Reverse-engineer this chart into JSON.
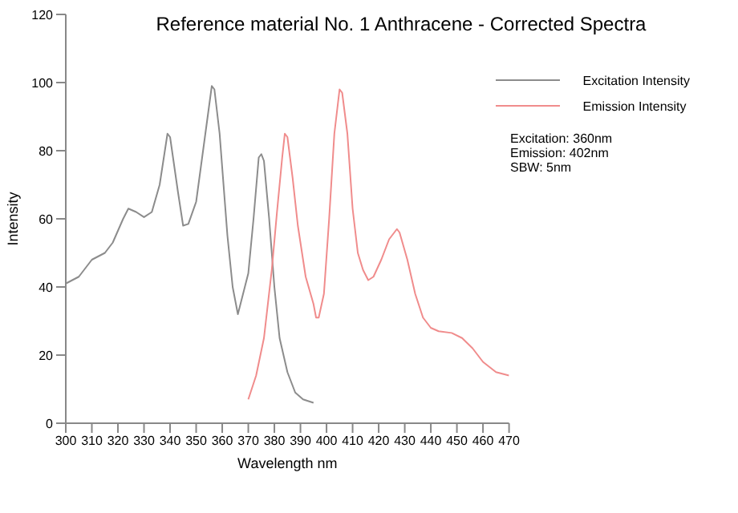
{
  "chart_data": {
    "type": "line",
    "title": "Reference material No. 1  Anthracene - Corrected Spectra",
    "xlabel": "Wavelength nm",
    "ylabel": "Intensity",
    "xlim": [
      300,
      470
    ],
    "xticks": [
      300,
      310,
      320,
      330,
      340,
      350,
      360,
      370,
      380,
      390,
      400,
      410,
      420,
      430,
      440,
      450,
      460,
      470
    ],
    "ylim": [
      0,
      120
    ],
    "yticks": [
      0,
      20,
      40,
      60,
      80,
      100,
      120
    ],
    "grid": false,
    "legend": "top right",
    "marker": "none",
    "line_style": "solid",
    "annotations": [
      "Excitation: 360nm",
      "Emission: 402nm",
      "SBW: 5nm"
    ],
    "series": [
      {
        "name": "Excitation Intensity",
        "color": "#8c8c8c",
        "x": [
          300,
          305,
          310,
          315,
          318,
          322,
          324,
          327,
          330,
          333,
          336,
          339,
          340,
          343,
          345,
          347,
          350,
          353,
          356,
          357,
          359,
          362,
          364,
          366,
          368,
          370,
          372,
          374,
          375,
          376,
          378,
          380,
          382,
          385,
          388,
          391,
          395
        ],
        "values": [
          41,
          43,
          48,
          50,
          53,
          60,
          63,
          62,
          60.5,
          62,
          70,
          85,
          84,
          68,
          58,
          58.5,
          65,
          82,
          99,
          98,
          85,
          55,
          40,
          32,
          38,
          44,
          60,
          78,
          79,
          77,
          60,
          40,
          25,
          15,
          9,
          7,
          6
        ]
      },
      {
        "name": "Emission Intensity",
        "color": "#f08c8c",
        "x": [
          370,
          373,
          376,
          379,
          381,
          383,
          384,
          385,
          387,
          389,
          392,
          395,
          396,
          397,
          399,
          401,
          403,
          405,
          406,
          408,
          410,
          412,
          414,
          416,
          418,
          421,
          424,
          427,
          428,
          431,
          434,
          437,
          440,
          443,
          448,
          452,
          456,
          460,
          465,
          470
        ],
        "values": [
          7,
          14,
          25,
          45,
          62,
          78,
          85,
          84,
          72,
          58,
          43,
          35,
          31,
          31,
          38,
          60,
          85,
          98,
          97,
          85,
          63,
          50,
          45,
          42,
          43,
          48,
          54,
          57,
          56,
          48,
          38,
          31,
          28,
          27,
          26.5,
          25,
          22,
          18,
          15,
          14
        ]
      }
    ]
  }
}
